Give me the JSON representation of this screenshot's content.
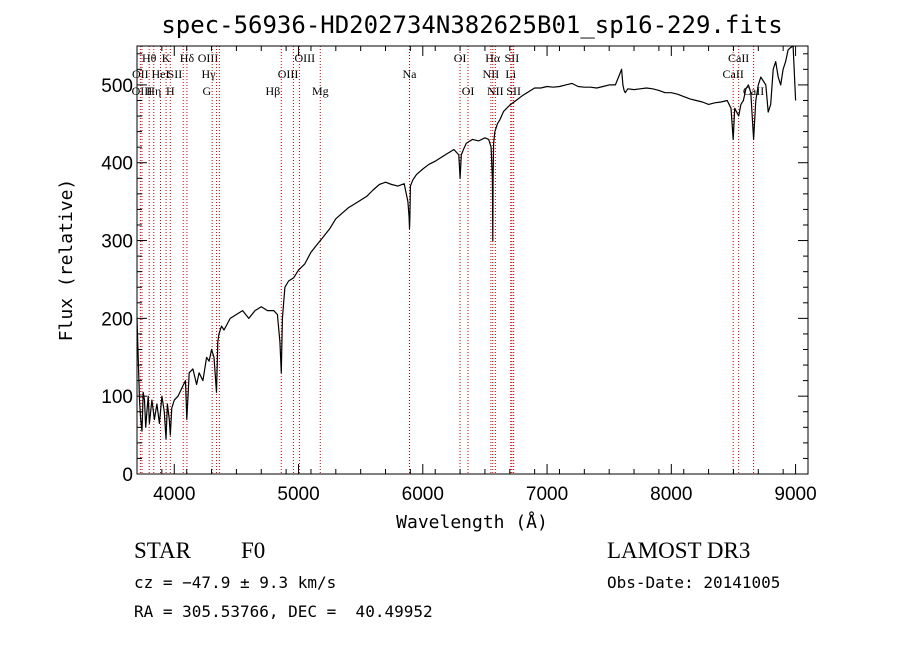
{
  "chart_data": {
    "type": "line",
    "title": "spec-56936-HD202734N382625B01_sp16-229.fits",
    "xlabel": "Wavelength (Å)",
    "ylabel": "Flux (relative)",
    "xlim": [
      3700,
      9100
    ],
    "ylim": [
      0,
      550
    ],
    "xticks": [
      4000,
      5000,
      6000,
      7000,
      8000,
      9000
    ],
    "yticks": [
      0,
      100,
      200,
      300,
      400,
      500
    ],
    "line_color": "#000000",
    "marker_color": "#cc0000",
    "series": [
      {
        "name": "flux",
        "x": [
          3700,
          3710,
          3720,
          3730,
          3740,
          3750,
          3760,
          3770,
          3780,
          3790,
          3800,
          3820,
          3840,
          3860,
          3880,
          3900,
          3920,
          3933,
          3945,
          3960,
          3968,
          3980,
          4000,
          4030,
          4060,
          4090,
          4101,
          4120,
          4150,
          4180,
          4200,
          4230,
          4260,
          4280,
          4300,
          4320,
          4340,
          4350,
          4360,
          4380,
          4400,
          4450,
          4500,
          4550,
          4600,
          4650,
          4700,
          4750,
          4800,
          4830,
          4850,
          4861,
          4870,
          4890,
          4920,
          4960,
          5000,
          5050,
          5100,
          5150,
          5200,
          5250,
          5300,
          5350,
          5400,
          5450,
          5500,
          5550,
          5600,
          5650,
          5700,
          5750,
          5800,
          5850,
          5880,
          5890,
          5893,
          5896,
          5900,
          5920,
          5950,
          6000,
          6050,
          6100,
          6150,
          6200,
          6250,
          6290,
          6300,
          6310,
          6330,
          6350,
          6400,
          6450,
          6500,
          6530,
          6550,
          6560,
          6563,
          6566,
          6570,
          6580,
          6600,
          6620,
          6650,
          6700,
          6750,
          6800,
          6850,
          6900,
          6950,
          7000,
          7050,
          7100,
          7150,
          7200,
          7250,
          7300,
          7350,
          7400,
          7450,
          7500,
          7550,
          7580,
          7600,
          7610,
          7620,
          7630,
          7650,
          7700,
          7750,
          7800,
          7850,
          7900,
          7950,
          8000,
          8050,
          8100,
          8150,
          8200,
          8250,
          8300,
          8350,
          8400,
          8450,
          8480,
          8498,
          8510,
          8542,
          8560,
          8580,
          8600,
          8620,
          8640,
          8662,
          8680,
          8700,
          8720,
          8740,
          8760,
          8780,
          8800,
          8820,
          8840,
          8860,
          8880,
          8900,
          8920,
          8940,
          8960,
          8980,
          9000
        ],
        "y": [
          200,
          150,
          95,
          70,
          55,
          105,
          95,
          60,
          80,
          100,
          65,
          95,
          70,
          90,
          65,
          100,
          80,
          45,
          90,
          70,
          50,
          85,
          95,
          100,
          110,
          120,
          70,
          130,
          135,
          115,
          130,
          120,
          150,
          145,
          160,
          150,
          105,
          170,
          180,
          190,
          185,
          200,
          205,
          210,
          200,
          210,
          215,
          210,
          210,
          205,
          170,
          130,
          200,
          240,
          248,
          252,
          262,
          270,
          285,
          295,
          305,
          315,
          328,
          335,
          342,
          347,
          352,
          357,
          365,
          372,
          375,
          372,
          370,
          373,
          350,
          330,
          315,
          330,
          370,
          378,
          385,
          392,
          398,
          402,
          407,
          412,
          417,
          410,
          380,
          410,
          418,
          425,
          430,
          428,
          432,
          430,
          420,
          380,
          300,
          380,
          425,
          440,
          450,
          455,
          466,
          474,
          480,
          486,
          491,
          496,
          496,
          498,
          497,
          498,
          500,
          502,
          498,
          497,
          497,
          496,
          498,
          500,
          500,
          512,
          520,
          500,
          493,
          490,
          495,
          494,
          495,
          496,
          495,
          493,
          490,
          490,
          488,
          485,
          482,
          480,
          478,
          475,
          477,
          478,
          480,
          470,
          430,
          470,
          460,
          475,
          480,
          495,
          500,
          490,
          430,
          480,
          500,
          510,
          505,
          500,
          465,
          475,
          520,
          530,
          510,
          500,
          520,
          530,
          545,
          548,
          550,
          480
        ]
      }
    ],
    "line_markers": [
      {
        "label": "Hθ",
        "x": 3798,
        "row": 1,
        "align": "center"
      },
      {
        "label": "OII",
        "x": 3727,
        "row": 2,
        "align": "center"
      },
      {
        "label": "OIII",
        "x": 3740,
        "row": 3,
        "align": "center"
      },
      {
        "label": "Hη",
        "x": 3835,
        "row": 3,
        "align": "center"
      },
      {
        "label": "HeI",
        "x": 3889,
        "row": 2,
        "align": "center"
      },
      {
        "label": "K",
        "x": 3934,
        "row": 1,
        "align": "center"
      },
      {
        "label": "SII",
        "x": 4072,
        "row": 2,
        "align": "right"
      },
      {
        "label": "H",
        "x": 3968,
        "row": 3,
        "align": "center"
      },
      {
        "label": "Hδ",
        "x": 4102,
        "row": 1,
        "align": "center"
      },
      {
        "label": "OIII",
        "x": 4363,
        "row": 1,
        "align": "right"
      },
      {
        "label": "Hγ",
        "x": 4340,
        "row": 2,
        "align": "right"
      },
      {
        "label": "G",
        "x": 4305,
        "row": 3,
        "align": "right"
      },
      {
        "label": "Hβ",
        "x": 4861,
        "row": 3,
        "align": "right"
      },
      {
        "label": "OIII",
        "x": 4959,
        "row": 1,
        "align": "left"
      },
      {
        "label": "OIII",
        "x": 5007,
        "row": 2,
        "align": "right"
      },
      {
        "label": "Mg",
        "x": 5175,
        "row": 3,
        "align": "center"
      },
      {
        "label": "Na",
        "x": 5893,
        "row": 2,
        "align": "center"
      },
      {
        "label": "OI",
        "x": 6300,
        "row": 1,
        "align": "center"
      },
      {
        "label": "OI",
        "x": 6364,
        "row": 3,
        "align": "center"
      },
      {
        "label": "Hα",
        "x": 6563,
        "row": 1,
        "align": "center"
      },
      {
        "label": "NII",
        "x": 6548,
        "row": 2,
        "align": "center"
      },
      {
        "label": "NII",
        "x": 6584,
        "row": 3,
        "align": "center"
      },
      {
        "label": "SII",
        "x": 6717,
        "row": 1,
        "align": "center"
      },
      {
        "label": "Li",
        "x": 6708,
        "row": 2,
        "align": "center"
      },
      {
        "label": "SII",
        "x": 6731,
        "row": 3,
        "align": "center"
      },
      {
        "label": "CaII",
        "x": 8542,
        "row": 1,
        "align": "center"
      },
      {
        "label": "CaII",
        "x": 8498,
        "row": 2,
        "align": "center"
      },
      {
        "label": "CaII",
        "x": 8662,
        "row": 3,
        "align": "center"
      }
    ]
  },
  "info": {
    "class": "STAR",
    "subclass": "F0",
    "survey": "LAMOST DR3",
    "cz": "cz = −47.9 ± 9.3 km/s",
    "obs_date": "Obs-Date: 20141005",
    "coords": "RA = 305.53766, DEC =  40.49952"
  }
}
